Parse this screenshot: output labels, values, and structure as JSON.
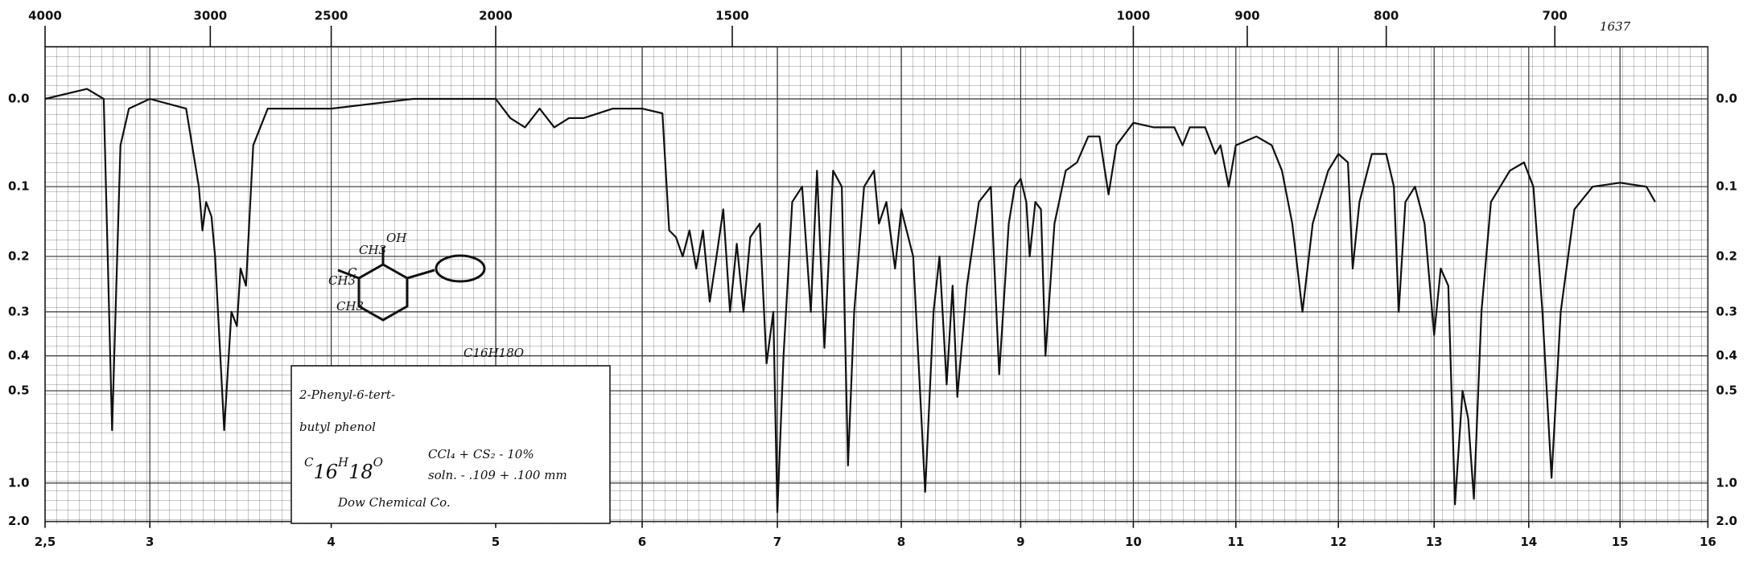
{
  "chart_data": {
    "type": "line",
    "y_scale": "absorbance",
    "grid": true,
    "color": "#111111",
    "xlim": [
      2.5,
      16
    ],
    "xticks": [
      {
        "value": 2.5,
        "label": "2,5"
      },
      3,
      4,
      5,
      6,
      7,
      8,
      9,
      10,
      11,
      12,
      13,
      14,
      15,
      16
    ],
    "x2ticks": [
      4000,
      3000,
      2500,
      2000,
      1500,
      1000,
      900,
      800,
      700
    ],
    "ylim": [
      -0.05,
      2
    ],
    "yticks": [
      {
        "value": 0,
        "label": "0.0"
      },
      0.1,
      0.2,
      0.3,
      0.4,
      0.5,
      {
        "value": 1,
        "label": "1.0"
      },
      {
        "value": 2,
        "label": "2.0"
      }
    ],
    "x": [
      2.5,
      2.7,
      2.78,
      2.82,
      2.86,
      2.9,
      3.0,
      3.2,
      3.27,
      3.29,
      3.31,
      3.34,
      3.36,
      3.41,
      3.45,
      3.48,
      3.5,
      3.53,
      3.57,
      3.65,
      4.0,
      4.5,
      5.0,
      5.1,
      5.2,
      5.3,
      5.4,
      5.5,
      5.6,
      5.8,
      6.0,
      6.15,
      6.2,
      6.25,
      6.3,
      6.35,
      6.4,
      6.45,
      6.5,
      6.55,
      6.6,
      6.65,
      6.7,
      6.75,
      6.8,
      6.87,
      6.92,
      6.97,
      7.0,
      7.05,
      7.12,
      7.2,
      7.27,
      7.32,
      7.38,
      7.45,
      7.52,
      7.57,
      7.62,
      7.7,
      7.78,
      7.82,
      7.88,
      7.95,
      8.0,
      8.1,
      8.2,
      8.27,
      8.32,
      8.38,
      8.43,
      8.47,
      8.55,
      8.65,
      8.75,
      8.82,
      8.9,
      8.95,
      9.0,
      9.05,
      9.08,
      9.13,
      9.18,
      9.22,
      9.3,
      9.4,
      9.5,
      9.6,
      9.7,
      9.78,
      9.85,
      10.0,
      10.2,
      10.4,
      10.48,
      10.55,
      10.7,
      10.8,
      10.85,
      10.93,
      11.0,
      11.2,
      11.35,
      11.45,
      11.55,
      11.65,
      11.75,
      11.9,
      12.0,
      12.1,
      12.15,
      12.22,
      12.35,
      12.5,
      12.58,
      12.63,
      12.7,
      12.8,
      12.9,
      13.0,
      13.07,
      13.15,
      13.22,
      13.3,
      13.36,
      13.42,
      13.5,
      13.6,
      13.8,
      13.95,
      14.05,
      14.15,
      14.25,
      14.35,
      14.5,
      14.7,
      15.0,
      15.3,
      15.4
    ],
    "values": [
      0.0,
      -0.01,
      0.0,
      0.65,
      0.05,
      0.01,
      0.0,
      0.01,
      0.1,
      0.16,
      0.12,
      0.14,
      0.2,
      0.65,
      0.3,
      0.33,
      0.22,
      0.25,
      0.05,
      0.01,
      0.01,
      0.0,
      0.0,
      0.02,
      0.03,
      0.01,
      0.03,
      0.02,
      0.02,
      0.01,
      0.01,
      0.015,
      0.16,
      0.17,
      0.2,
      0.16,
      0.22,
      0.16,
      0.28,
      0.2,
      0.13,
      0.3,
      0.18,
      0.3,
      0.17,
      0.15,
      0.42,
      0.3,
      1.5,
      0.4,
      0.12,
      0.1,
      0.3,
      0.08,
      0.38,
      0.08,
      0.1,
      0.85,
      0.3,
      0.1,
      0.08,
      0.15,
      0.12,
      0.22,
      0.13,
      0.2,
      1.1,
      0.3,
      0.2,
      0.48,
      0.25,
      0.52,
      0.25,
      0.12,
      0.1,
      0.45,
      0.15,
      0.1,
      0.09,
      0.12,
      0.2,
      0.12,
      0.13,
      0.4,
      0.15,
      0.08,
      0.07,
      0.04,
      0.04,
      0.11,
      0.05,
      0.025,
      0.03,
      0.03,
      0.05,
      0.03,
      0.03,
      0.06,
      0.05,
      0.1,
      0.05,
      0.04,
      0.05,
      0.08,
      0.15,
      0.3,
      0.15,
      0.08,
      0.06,
      0.07,
      0.22,
      0.12,
      0.06,
      0.06,
      0.1,
      0.3,
      0.12,
      0.1,
      0.15,
      0.35,
      0.22,
      0.25,
      1.3,
      0.5,
      0.6,
      1.2,
      0.3,
      0.12,
      0.08,
      0.07,
      0.1,
      0.3,
      0.95,
      0.3,
      0.13,
      0.1,
      0.095,
      0.1,
      0.12
    ],
    "annotations": {
      "catalog_number": "1637",
      "formula_sketch": "C16H18O",
      "structure_labels": [
        "CH3",
        "OH",
        "CH3",
        "C",
        "CH3"
      ],
      "name": [
        "2-Phenyl-6-tert-",
        "butyl phenol"
      ],
      "formula": [
        "C",
        "16",
        "H",
        "18",
        "O"
      ],
      "solvent": "CCl₄ + CS₂ - 10%",
      "cell": "soln. - .109 + .100 mm",
      "source": "Dow Chemical Co."
    }
  }
}
